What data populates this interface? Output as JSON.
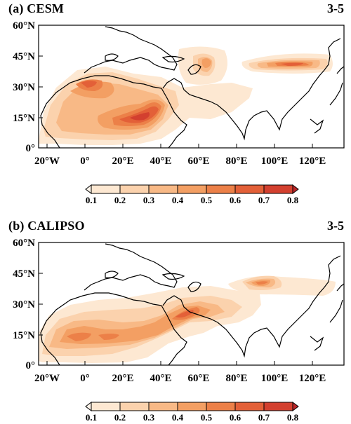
{
  "panels": [
    {
      "title": "(a) CESM",
      "months": "3-5"
    },
    {
      "title": "(b) CALIPSO",
      "months": "3-5"
    }
  ],
  "y_ticks": [
    "60°N",
    "45°N",
    "30°N",
    "15°N",
    "0°"
  ],
  "x_ticks": [
    "20°W",
    "0°",
    "20°E",
    "40°E",
    "60°E",
    "80°E",
    "100°E",
    "120°E"
  ],
  "colorbar": {
    "levels": [
      "0.1",
      "0.2",
      "0.3",
      "0.4",
      "0.5",
      "0.6",
      "0.7",
      "0.8"
    ],
    "colors": [
      "#fde8d2",
      "#fbd2ad",
      "#f8b986",
      "#f39f63",
      "#ec8048",
      "#e36038",
      "#d3402f",
      "#bb2527"
    ]
  }
}
